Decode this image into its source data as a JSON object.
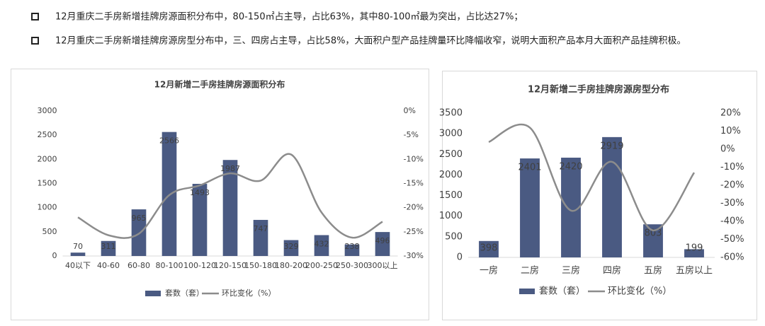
{
  "bullets": [
    "12月重庆二手房新增挂牌房源面积分布中，80-150㎡占主导，占比63%，其中80-100㎡最为突出，占比达27%；",
    "12月重庆二手房新增挂牌房源房型分布中，三、四房占主导，占比58%，大面积户型产品挂牌量环比降幅收窄，说明大面积产品本月大面积产品挂牌积极。"
  ],
  "chart_data": [
    {
      "type": "combo",
      "title": "12月新增二手房挂牌房源面积分布",
      "categories": [
        "40以下",
        "40-60",
        "60-80",
        "80-100",
        "100-120",
        "120-150",
        "150-180",
        "180-200",
        "200-250",
        "250-300",
        "300以上"
      ],
      "series": [
        {
          "name": "套数（套）",
          "type": "bar",
          "color": "#4a5a82",
          "values": [
            70,
            311,
            965,
            2566,
            1493,
            1987,
            747,
            329,
            432,
            238,
            496
          ]
        },
        {
          "name": "环比变化（%）",
          "type": "line",
          "axis": "y2",
          "color": "#8c8c8c",
          "values": [
            -22,
            -25.7,
            -25.4,
            -17.4,
            -15.4,
            -12.9,
            -14.4,
            -9,
            -21,
            -26.2,
            -22.9
          ]
        }
      ],
      "ylim": [
        0,
        3000
      ],
      "yticks": [
        0,
        500,
        1000,
        1500,
        2000,
        2500,
        3000
      ],
      "y2lim": [
        -30,
        0
      ],
      "y2ticks": [
        {
          "value": -30,
          "label": "-30%"
        },
        {
          "value": -25,
          "label": "-25%"
        },
        {
          "value": -20,
          "label": "-20%"
        },
        {
          "value": -15,
          "label": "-15%"
        },
        {
          "value": -10,
          "label": "-10%"
        },
        {
          "value": -5,
          "label": "-5%"
        },
        {
          "value": 0,
          "label": "0%"
        }
      ],
      "legend": "bottom"
    },
    {
      "type": "combo",
      "title": "12月新增二手房挂牌房源房型分布",
      "categories": [
        "一房",
        "二房",
        "三房",
        "四房",
        "五房",
        "五房以上"
      ],
      "series": [
        {
          "name": "套数（套）",
          "type": "bar",
          "color": "#4a5a82",
          "values": [
            398,
            2401,
            2420,
            2919,
            803,
            199
          ]
        },
        {
          "name": "环比变化（%）",
          "type": "line",
          "axis": "y2",
          "color": "#8c8c8c",
          "values": [
            4,
            12,
            -34,
            -7,
            -45,
            -13
          ]
        }
      ],
      "ylim": [
        0,
        3500
      ],
      "yticks": [
        0,
        500,
        1000,
        1500,
        2000,
        2500,
        3000,
        3500
      ],
      "y2lim": [
        -60,
        20
      ],
      "y2ticks": [
        {
          "value": -60,
          "label": "-60%"
        },
        {
          "value": -50,
          "label": "-50%"
        },
        {
          "value": -40,
          "label": "-40%"
        },
        {
          "value": -30,
          "label": "-30%"
        },
        {
          "value": -20,
          "label": "-20%"
        },
        {
          "value": -10,
          "label": "-10%"
        },
        {
          "value": 0,
          "label": "0%"
        },
        {
          "value": 10,
          "label": "10%"
        },
        {
          "value": 20,
          "label": "20%"
        }
      ],
      "legend": "bottom"
    }
  ]
}
